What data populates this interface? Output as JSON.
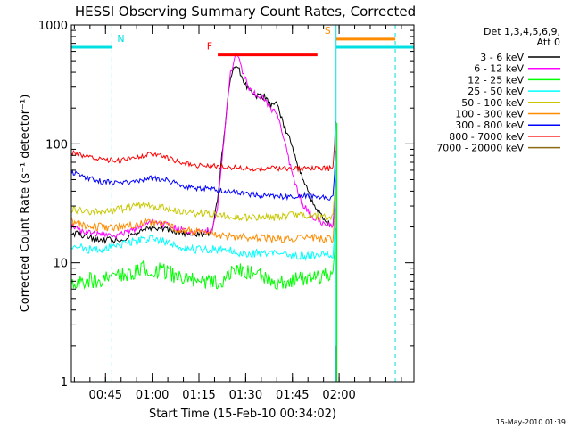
{
  "chart_data": {
    "type": "line",
    "title": "HESSI Observing Summary Count Rates, Corrected",
    "xlabel": "Start Time (15-Feb-10 00:34:02)",
    "ylabel": "Corrected Count Rate (s⁻¹ detector⁻¹)",
    "yscale": "log",
    "ylim": [
      1,
      1000
    ],
    "y_ticks": [
      "1",
      "10",
      "100",
      "1000"
    ],
    "x_ticks": [
      "00:45",
      "01:00",
      "01:15",
      "01:30",
      "01:45",
      "02:00"
    ],
    "grid": false,
    "legend_header": [
      "Det 1,3,4,5,6,9,",
      "Att 0"
    ],
    "legend_position": "right",
    "footer_date": "15-May-2010 01:39",
    "annotations": [
      {
        "label": "N",
        "color": "#00e0e0",
        "kind": "night",
        "segments": [
          [
            0,
            13
          ],
          [
            104,
            110
          ]
        ],
        "level": 650
      },
      {
        "label": "F",
        "color": "#ff0000",
        "kind": "flare",
        "segments": [
          [
            47,
            79
          ]
        ],
        "level": 560
      },
      {
        "label": "S",
        "color": "#ff8c00",
        "kind": "saa",
        "segments": [
          [
            85,
            104
          ]
        ],
        "level": 760
      },
      {
        "label": "",
        "color": "#00e0e0",
        "kind": "night-after-saa",
        "segments": [
          [
            85,
            104
          ]
        ],
        "level": 650
      }
    ],
    "x_unit": "minutes since 00:34:02",
    "series": [
      {
        "name": "3 - 6 keV",
        "color": "#000000",
        "x": [
          0,
          5,
          10,
          15,
          20,
          25,
          30,
          35,
          40,
          45,
          47,
          49,
          51,
          53,
          55,
          57,
          59,
          62,
          64,
          66,
          68,
          70,
          72,
          74,
          76,
          78,
          80,
          82,
          84
        ],
        "values": [
          18,
          16.5,
          15.5,
          15.5,
          17,
          20,
          19,
          18,
          17,
          18,
          35,
          120,
          350,
          480,
          350,
          280,
          250,
          250,
          210,
          220,
          150,
          110,
          75,
          55,
          40,
          30,
          26,
          22,
          20
        ]
      },
      {
        "name": "6 - 12 keV",
        "color": "#ff00ff",
        "x": [
          0,
          5,
          10,
          15,
          20,
          25,
          30,
          35,
          40,
          45,
          47,
          49,
          51,
          53,
          55,
          57,
          59,
          62,
          64,
          66,
          68,
          70,
          72,
          74,
          76,
          78,
          80,
          82,
          84
        ],
        "values": [
          20,
          18,
          17,
          17,
          19,
          22,
          21,
          19,
          18,
          19,
          30,
          110,
          380,
          600,
          400,
          300,
          260,
          240,
          200,
          180,
          120,
          70,
          45,
          32,
          27,
          24,
          22,
          21,
          20
        ]
      },
      {
        "name": "12 - 25 keV",
        "color": "#00ff00",
        "values": [
          7,
          7,
          7.3,
          7.5,
          8.5,
          9,
          8.5,
          7.5,
          7,
          7,
          7,
          7.2,
          8.5,
          9,
          8.6,
          8.2,
          8,
          7.6,
          7.5,
          7,
          7,
          7.2,
          7.5,
          7.5,
          7.4,
          7.5,
          7.6,
          7.7,
          7.8
        ],
        "x": [
          0,
          5,
          10,
          15,
          20,
          25,
          30,
          35,
          40,
          45,
          47,
          49,
          51,
          53,
          55,
          57,
          59,
          62,
          64,
          66,
          68,
          70,
          72,
          74,
          76,
          78,
          80,
          82,
          84
        ]
      },
      {
        "name": "25 - 50 keV",
        "color": "#00ffff",
        "x": [
          0,
          5,
          10,
          15,
          20,
          25,
          30,
          35,
          40,
          45,
          50,
          55,
          60,
          65,
          70,
          75,
          80,
          84
        ],
        "values": [
          14,
          13,
          13,
          14,
          15,
          16,
          15,
          13.5,
          13,
          13,
          13,
          12,
          12,
          12,
          11.5,
          11.5,
          11.5,
          11.5
        ]
      },
      {
        "name": "50 - 100 keV",
        "color": "#c8c800",
        "x": [
          0,
          5,
          10,
          15,
          20,
          25,
          30,
          35,
          40,
          45,
          50,
          55,
          60,
          65,
          70,
          75,
          80,
          84
        ],
        "values": [
          28,
          27,
          27,
          28,
          30,
          30,
          29,
          27,
          26,
          26,
          25,
          24,
          24,
          24,
          25,
          25,
          24,
          24
        ]
      },
      {
        "name": "100 - 300 keV",
        "color": "#ff8c00",
        "x": [
          0,
          5,
          10,
          15,
          20,
          25,
          30,
          35,
          40,
          45,
          50,
          55,
          60,
          65,
          70,
          75,
          80,
          84
        ],
        "values": [
          22,
          20,
          20,
          20,
          21,
          22,
          21,
          19,
          18,
          17.5,
          17,
          16.5,
          16,
          16,
          16,
          16,
          16,
          16
        ]
      },
      {
        "name": "300 - 800 keV",
        "color": "#0000ff",
        "x": [
          0,
          5,
          10,
          15,
          20,
          25,
          30,
          35,
          40,
          45,
          50,
          55,
          60,
          65,
          70,
          75,
          80,
          84
        ],
        "values": [
          58,
          52,
          48,
          47,
          48,
          52,
          50,
          45,
          42,
          42,
          40,
          38,
          37,
          36,
          36,
          37,
          36,
          35
        ]
      },
      {
        "name": "800 - 7000 keV",
        "color": "#ff0000",
        "x": [
          0,
          5,
          10,
          15,
          20,
          25,
          30,
          35,
          40,
          45,
          50,
          55,
          60,
          65,
          70,
          75,
          80,
          84
        ],
        "values": [
          85,
          78,
          74,
          72,
          76,
          82,
          78,
          70,
          66,
          66,
          64,
          62,
          62,
          62,
          62,
          62,
          62,
          62
        ]
      },
      {
        "name": "7000 - 20000 keV",
        "color": "#8b6914",
        "x": [],
        "values": []
      }
    ]
  }
}
